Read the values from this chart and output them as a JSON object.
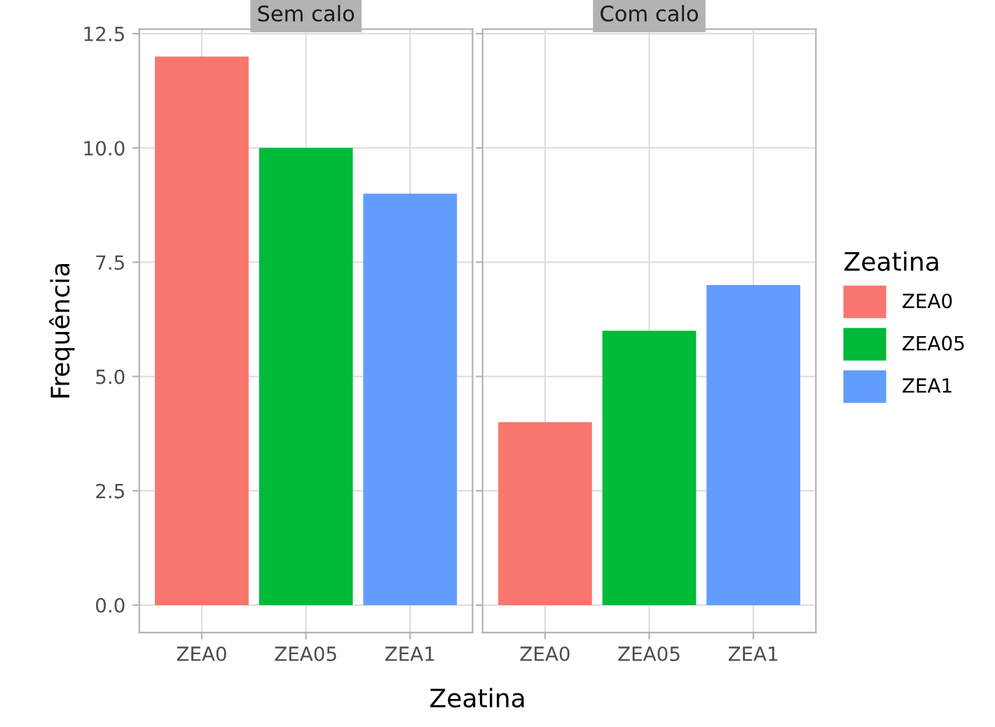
{
  "chart_data": [
    {
      "type": "bar",
      "title": "Sem calo",
      "ylabel": "Frequência",
      "xlabel": "Zeatina",
      "categories": [
        "ZEA0",
        "ZEA05",
        "ZEA1"
      ],
      "series": [
        {
          "name": "ZEA0",
          "color": "#f8766d",
          "values": [
            12,
            null,
            null
          ]
        },
        {
          "name": "ZEA05",
          "color": "#00ba38",
          "values": [
            null,
            10,
            null
          ]
        },
        {
          "name": "ZEA1",
          "color": "#619cff",
          "values": [
            null,
            null,
            9
          ]
        }
      ],
      "ylim": [
        -0.6,
        12.6
      ],
      "yticks": [
        {
          "value": 0,
          "label": "0.0"
        },
        {
          "value": 2.5,
          "label": "2.5"
        },
        {
          "value": 5,
          "label": "5.0"
        },
        {
          "value": 7.5,
          "label": "7.5"
        },
        {
          "value": 10,
          "label": "10.0"
        },
        {
          "value": 12.5,
          "label": "12.5"
        }
      ],
      "grid": true,
      "legend": "right",
      "legend_title": "Zeatina"
    },
    {
      "type": "bar",
      "title": "Com calo",
      "categories": [
        "ZEA0",
        "ZEA05",
        "ZEA1"
      ],
      "series": [
        {
          "color": "#f8766d",
          "values": [
            4,
            null,
            null
          ]
        },
        {
          "color": "#00ba38",
          "values": [
            null,
            6,
            null
          ]
        },
        {
          "color": "#619cff",
          "values": [
            null,
            null,
            7
          ]
        }
      ],
      "ylim": [
        -0.6,
        12.6
      ],
      "yticks": [
        0,
        2.5,
        5,
        7.5,
        10,
        12.5
      ],
      "grid": true,
      "tick_labels": "x"
    }
  ]
}
